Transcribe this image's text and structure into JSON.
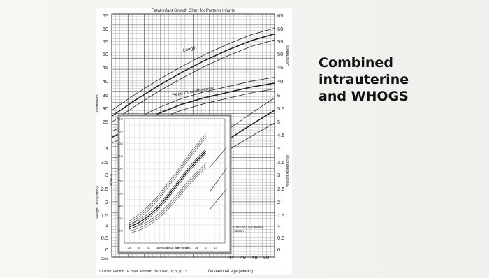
{
  "slide": {
    "title_lines": [
      "Combined",
      "intrauterine",
      "and WHOGS"
    ]
  },
  "colors": {
    "grid": "#6b6b6b",
    "curve": "#222222",
    "inset_bg": "#ffffff",
    "inset_frame": "#8a8a8a"
  },
  "chart_data": [
    {
      "type": "line",
      "title": "Fetal-Infant Growth Chart for Preterm Infants",
      "xlabel": "Gestational age (weeks)",
      "x_ticks_visible": [
        "44",
        "46",
        "48",
        "50"
      ],
      "ylabel_left": "Centimeters",
      "ylabel_left_lower": "Weight (kilograms)",
      "ylabel_right_upper": "Centimeters",
      "ylabel_right_lower": "Weight (kilograms)",
      "row_label": "Date",
      "citation": "Citation: Fenton TR.  BMC Pediatr. 2003 Dec 16; 3(1): 13",
      "cm_ticks": [
        "65",
        "60",
        "55",
        "50",
        "45",
        "40",
        "35",
        "30",
        "25"
      ],
      "kg_ticks_left": [
        "2.5",
        "2",
        "1.5",
        "1",
        "0.5",
        "0"
      ],
      "kg_ticks_left_upper": [
        "4",
        "3.5",
        "3"
      ],
      "kg_ticks_right": [
        "6",
        "5.5",
        "5",
        "4.5",
        "4",
        "3.5",
        "3",
        "2.5",
        "2",
        "1.5",
        "1",
        "0.5",
        "0"
      ],
      "xlim": [
        22,
        50
      ],
      "series": [
        {
          "name": "Length",
          "x": [
            22,
            26,
            30,
            34,
            38,
            42,
            46,
            50
          ],
          "y": [
            27,
            33,
            38.5,
            43.5,
            48,
            52,
            55.5,
            58
          ]
        },
        {
          "name": "Head Circumference",
          "x": [
            22,
            26,
            30,
            34,
            38,
            42,
            46,
            50
          ],
          "y": [
            19,
            23.5,
            28,
            31.5,
            34,
            36,
            38,
            39.5
          ]
        }
      ],
      "notes_visible": [
        "in terms of completed",
        "estation."
      ]
    },
    {
      "type": "line",
      "title": "",
      "xlabel": "Gestational age (weeks)",
      "ylabel": "Weight (g)",
      "x_ticks": [
        "24",
        "26",
        "28",
        "30",
        "32",
        "34",
        "36",
        "38",
        "40",
        "42"
      ],
      "y_ticks": [
        "500",
        "1000",
        "1500",
        "2000",
        "2500",
        "3000",
        "3500",
        "4000",
        "4500",
        "5000"
      ],
      "xlim": [
        23,
        44
      ],
      "ylim": [
        0,
        5000
      ],
      "series": [
        {
          "x": [
            24,
            26,
            28,
            30,
            32,
            34,
            36,
            38,
            40
          ],
          "y": [
            800,
            1050,
            1400,
            1800,
            2300,
            2800,
            3350,
            3850,
            4300
          ]
        },
        {
          "x": [
            24,
            26,
            28,
            30,
            32,
            34,
            36,
            38,
            40
          ],
          "y": [
            640,
            820,
            1080,
            1420,
            1860,
            2350,
            2850,
            3300,
            3700
          ]
        },
        {
          "x": [
            24,
            26,
            28,
            30,
            32,
            34,
            36,
            38,
            40
          ],
          "y": [
            480,
            600,
            780,
            1060,
            1420,
            1860,
            2330,
            2750,
            3100
          ]
        }
      ]
    }
  ]
}
